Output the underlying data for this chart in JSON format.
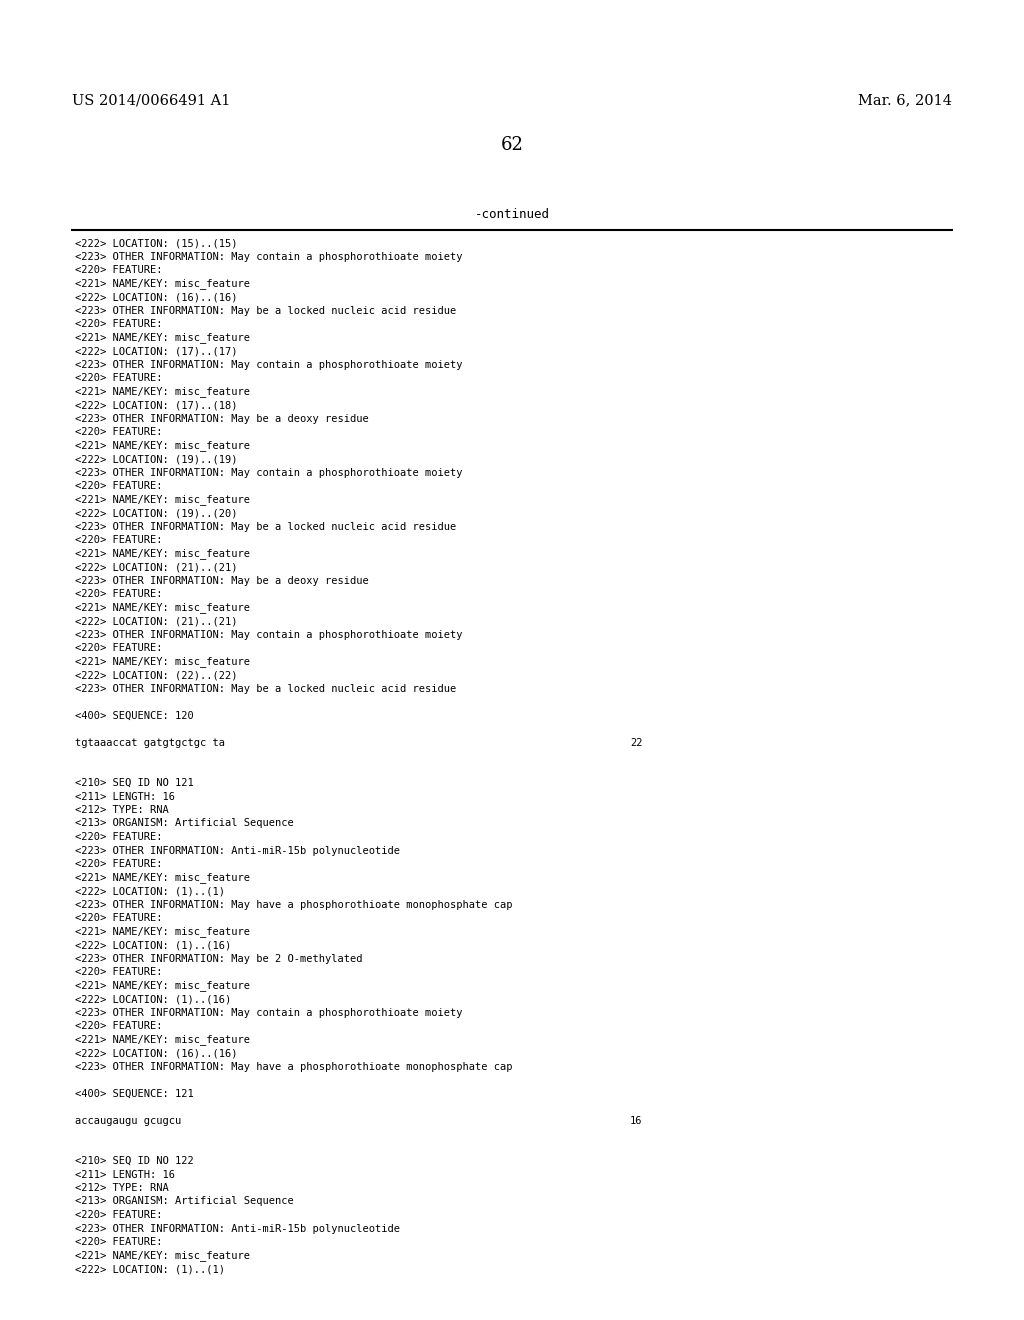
{
  "header_left": "US 2014/0066491 A1",
  "header_right": "Mar. 6, 2014",
  "page_number": "62",
  "continued_text": "-continued",
  "background_color": "#ffffff",
  "text_color": "#000000",
  "font_size": 7.5,
  "header_font_size": 10.5,
  "page_num_font_size": 13,
  "continued_font_size": 9.0,
  "content_lines": [
    "<222> LOCATION: (15)..(15)",
    "<223> OTHER INFORMATION: May contain a phosphorothioate moiety",
    "<220> FEATURE:",
    "<221> NAME/KEY: misc_feature",
    "<222> LOCATION: (16)..(16)",
    "<223> OTHER INFORMATION: May be a locked nucleic acid residue",
    "<220> FEATURE:",
    "<221> NAME/KEY: misc_feature",
    "<222> LOCATION: (17)..(17)",
    "<223> OTHER INFORMATION: May contain a phosphorothioate moiety",
    "<220> FEATURE:",
    "<221> NAME/KEY: misc_feature",
    "<222> LOCATION: (17)..(18)",
    "<223> OTHER INFORMATION: May be a deoxy residue",
    "<220> FEATURE:",
    "<221> NAME/KEY: misc_feature",
    "<222> LOCATION: (19)..(19)",
    "<223> OTHER INFORMATION: May contain a phosphorothioate moiety",
    "<220> FEATURE:",
    "<221> NAME/KEY: misc_feature",
    "<222> LOCATION: (19)..(20)",
    "<223> OTHER INFORMATION: May be a locked nucleic acid residue",
    "<220> FEATURE:",
    "<221> NAME/KEY: misc_feature",
    "<222> LOCATION: (21)..(21)",
    "<223> OTHER INFORMATION: May be a deoxy residue",
    "<220> FEATURE:",
    "<221> NAME/KEY: misc_feature",
    "<222> LOCATION: (21)..(21)",
    "<223> OTHER INFORMATION: May contain a phosphorothioate moiety",
    "<220> FEATURE:",
    "<221> NAME/KEY: misc_feature",
    "<222> LOCATION: (22)..(22)",
    "<223> OTHER INFORMATION: May be a locked nucleic acid residue",
    "",
    "<400> SEQUENCE: 120",
    "",
    "SEQ_tgtaaaccat gatgtgctgc ta|22",
    "",
    "",
    "<210> SEQ ID NO 121",
    "<211> LENGTH: 16",
    "<212> TYPE: RNA",
    "<213> ORGANISM: Artificial Sequence",
    "<220> FEATURE:",
    "<223> OTHER INFORMATION: Anti-miR-15b polynucleotide",
    "<220> FEATURE:",
    "<221> NAME/KEY: misc_feature",
    "<222> LOCATION: (1)..(1)",
    "<223> OTHER INFORMATION: May have a phosphorothioate monophosphate cap",
    "<220> FEATURE:",
    "<221> NAME/KEY: misc_feature",
    "<222> LOCATION: (1)..(16)",
    "<223> OTHER INFORMATION: May be 2 O-methylated",
    "<220> FEATURE:",
    "<221> NAME/KEY: misc_feature",
    "<222> LOCATION: (1)..(16)",
    "<223> OTHER INFORMATION: May contain a phosphorothioate moiety",
    "<220> FEATURE:",
    "<221> NAME/KEY: misc_feature",
    "<222> LOCATION: (16)..(16)",
    "<223> OTHER INFORMATION: May have a phosphorothioate monophosphate cap",
    "",
    "<400> SEQUENCE: 121",
    "",
    "SEQ_accaugaugu gcugcu|16",
    "",
    "",
    "<210> SEQ ID NO 122",
    "<211> LENGTH: 16",
    "<212> TYPE: RNA",
    "<213> ORGANISM: Artificial Sequence",
    "<220> FEATURE:",
    "<223> OTHER INFORMATION: Anti-miR-15b polynucleotide",
    "<220> FEATURE:",
    "<221> NAME/KEY: misc_feature",
    "<222> LOCATION: (1)..(1)"
  ]
}
